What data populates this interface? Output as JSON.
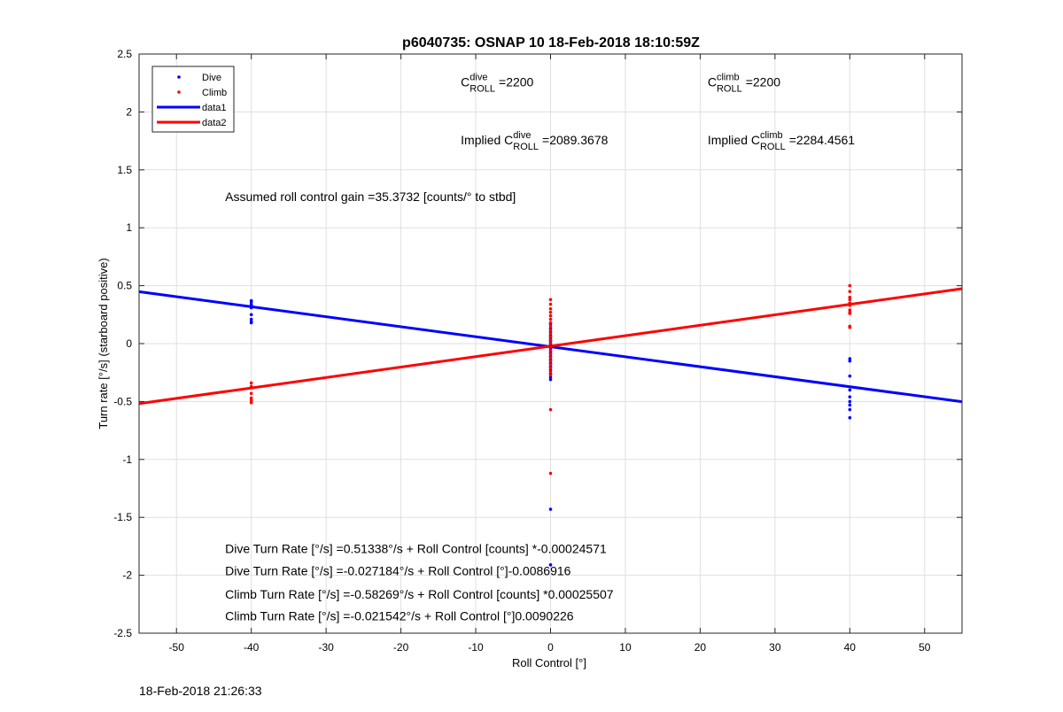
{
  "footer_timestamp": "18-Feb-2018 21:26:33",
  "chart_data": {
    "type": "scatter",
    "title": "p6040735: OSNAP 10 18-Feb-2018 18:10:59Z",
    "xlabel": "Roll Control [°]",
    "ylabel": "Turn rate [°/s] (starboard positive)",
    "xlim": [
      -55,
      55
    ],
    "ylim": [
      -2.5,
      2.5
    ],
    "xticks": [
      -50,
      -40,
      -30,
      -20,
      -10,
      0,
      10,
      20,
      30,
      40,
      50
    ],
    "yticks": [
      -2.5,
      -2,
      -1.5,
      -1,
      -0.5,
      0,
      0.5,
      1,
      1.5,
      2,
      2.5
    ],
    "grid": true,
    "legend_position": "top-left",
    "legend": [
      {
        "label": "Dive",
        "kind": "marker",
        "color": "#0000ff"
      },
      {
        "label": "Climb",
        "kind": "marker",
        "color": "#ff0000"
      },
      {
        "label": "data1",
        "kind": "line",
        "color": "#0000ff"
      },
      {
        "label": "data2",
        "kind": "line",
        "color": "#ff0000"
      }
    ],
    "series": [
      {
        "name": "Dive",
        "kind": "scatter",
        "color": "#0000ff",
        "points": [
          [
            -40,
            0.37
          ],
          [
            -40,
            0.36
          ],
          [
            -40,
            0.34
          ],
          [
            -40,
            0.33
          ],
          [
            -40,
            0.31
          ],
          [
            -40,
            0.25
          ],
          [
            -40,
            0.21
          ],
          [
            -40,
            0.19
          ],
          [
            -40,
            0.18
          ],
          [
            0,
            0.17
          ],
          [
            0,
            0.13
          ],
          [
            0,
            0.1
          ],
          [
            0,
            0.07
          ],
          [
            0,
            0.05
          ],
          [
            0,
            0.03
          ],
          [
            0,
            0.02
          ],
          [
            0,
            0.0
          ],
          [
            0,
            -0.02
          ],
          [
            0,
            -0.04
          ],
          [
            0,
            -0.06
          ],
          [
            0,
            -0.08
          ],
          [
            0,
            -0.11
          ],
          [
            0,
            -0.14
          ],
          [
            0,
            -0.17
          ],
          [
            0,
            -0.2
          ],
          [
            0,
            -0.23
          ],
          [
            0,
            -0.26
          ],
          [
            0,
            -0.29
          ],
          [
            0,
            -0.31
          ],
          [
            0,
            -1.43
          ],
          [
            0,
            -1.91
          ],
          [
            40,
            -0.13
          ],
          [
            40,
            -0.15
          ],
          [
            40,
            -0.28
          ],
          [
            40,
            -0.4
          ],
          [
            40,
            -0.46
          ],
          [
            40,
            -0.5
          ],
          [
            40,
            -0.53
          ],
          [
            40,
            -0.57
          ],
          [
            40,
            -0.64
          ]
        ]
      },
      {
        "name": "Climb",
        "kind": "scatter",
        "color": "#ff0000",
        "points": [
          [
            -40,
            -0.34
          ],
          [
            -40,
            -0.37
          ],
          [
            -40,
            -0.43
          ],
          [
            -40,
            -0.47
          ],
          [
            -40,
            -0.49
          ],
          [
            -40,
            -0.51
          ],
          [
            0,
            0.38
          ],
          [
            0,
            0.34
          ],
          [
            0,
            0.3
          ],
          [
            0,
            0.27
          ],
          [
            0,
            0.24
          ],
          [
            0,
            0.21
          ],
          [
            0,
            0.18
          ],
          [
            0,
            0.15
          ],
          [
            0,
            0.12
          ],
          [
            0,
            0.09
          ],
          [
            0,
            0.06
          ],
          [
            0,
            0.03
          ],
          [
            0,
            0.0
          ],
          [
            0,
            -0.03
          ],
          [
            0,
            -0.06
          ],
          [
            0,
            -0.09
          ],
          [
            0,
            -0.12
          ],
          [
            0,
            -0.15
          ],
          [
            0,
            -0.18
          ],
          [
            0,
            -0.21
          ],
          [
            0,
            -0.24
          ],
          [
            0,
            -0.27
          ],
          [
            0,
            -0.57
          ],
          [
            0,
            -1.12
          ],
          [
            40,
            0.5
          ],
          [
            40,
            0.45
          ],
          [
            40,
            0.4
          ],
          [
            40,
            0.38
          ],
          [
            40,
            0.35
          ],
          [
            40,
            0.33
          ],
          [
            40,
            0.29
          ],
          [
            40,
            0.27
          ],
          [
            40,
            0.26
          ],
          [
            40,
            0.15
          ],
          [
            40,
            0.14
          ]
        ]
      },
      {
        "name": "data1",
        "kind": "line",
        "color": "#0000ff",
        "points": [
          [
            -55,
            0.448
          ],
          [
            55,
            -0.502
          ]
        ]
      },
      {
        "name": "data2",
        "kind": "line",
        "color": "#ff0000",
        "points": [
          [
            -55,
            -0.518
          ],
          [
            55,
            0.474
          ]
        ]
      }
    ],
    "annotations": [
      {
        "id": "c-dive",
        "prefix": "C",
        "sup": "dive",
        "sub": "ROLL",
        "suffix": "=2200",
        "x": -12,
        "y": 2.22
      },
      {
        "id": "c-climb",
        "prefix": "C",
        "sup": "climb",
        "sub": "ROLL",
        "suffix": "=2200",
        "x": 21,
        "y": 2.22
      },
      {
        "id": "implied-dive",
        "prefix": "Implied C",
        "sup": "dive",
        "sub": "ROLL",
        "suffix": "=2089.3678",
        "x": -12,
        "y": 1.72
      },
      {
        "id": "implied-climb",
        "prefix": "Implied C",
        "sup": "climb",
        "sub": "ROLL",
        "suffix": "=2284.4561",
        "x": 21,
        "y": 1.72
      },
      {
        "id": "gain",
        "text": "Assumed roll control gain =35.3732 [counts/° to stbd]",
        "x": -43.5,
        "y": 1.23
      },
      {
        "id": "fit1",
        "text": "Dive Turn Rate [°/s] =0.51338°/s + Roll Control [counts] *-0.00024571",
        "x": -43.5,
        "y": -1.81
      },
      {
        "id": "fit2",
        "text": "Dive Turn Rate [°/s] =-0.027184°/s + Roll Control [°]-0.0086916",
        "x": -43.5,
        "y": -2.0
      },
      {
        "id": "fit3",
        "text": "Climb Turn Rate [°/s] =-0.58269°/s + Roll Control [counts] *0.00025507",
        "x": -43.5,
        "y": -2.2
      },
      {
        "id": "fit4",
        "text": "Climb Turn Rate [°/s] =-0.021542°/s + Roll Control [°]0.0090226",
        "x": -43.5,
        "y": -2.39
      }
    ]
  }
}
